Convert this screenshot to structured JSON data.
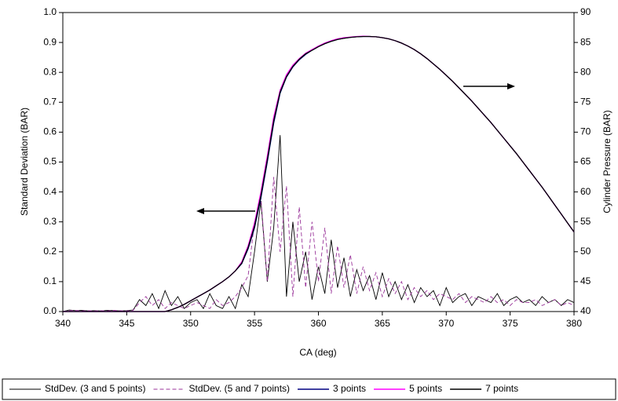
{
  "chart_data": {
    "type": "line",
    "xlabel": "CA (deg)",
    "ylabel": "Standard Deviation (BAR)",
    "y2label": "Cylinder Pressure (BAR)",
    "xlim": [
      340,
      380
    ],
    "xticks": [
      340,
      345,
      350,
      355,
      360,
      365,
      370,
      375,
      380
    ],
    "ylim": [
      0,
      1
    ],
    "yticks": [
      {
        "value": 0,
        "label": "0.0"
      },
      0.1,
      0.2,
      0.3,
      0.4,
      0.5,
      0.6,
      0.7,
      0.8,
      0.9,
      {
        "value": 1,
        "label": "1.0"
      }
    ],
    "y2lim": [
      40,
      90
    ],
    "y2ticks": [
      40,
      45,
      50,
      55,
      60,
      65,
      70,
      75,
      80,
      85,
      90
    ],
    "legend": "bottom",
    "x": [
      340,
      340.5,
      341,
      341.5,
      342,
      342.5,
      343,
      343.5,
      344,
      344.5,
      345,
      345.5,
      346,
      346.5,
      347,
      347.5,
      348,
      348.5,
      349,
      349.5,
      350,
      350.5,
      351,
      351.5,
      352,
      352.5,
      353,
      353.5,
      354,
      354.5,
      355,
      355.5,
      356,
      356.5,
      357,
      357.5,
      358,
      358.5,
      359,
      359.5,
      360,
      360.5,
      361,
      361.5,
      362,
      362.5,
      363,
      363.5,
      364,
      364.5,
      365,
      365.5,
      366,
      366.5,
      367,
      367.5,
      368,
      368.5,
      369,
      369.5,
      370,
      370.5,
      371,
      371.5,
      372,
      372.5,
      373,
      373.5,
      374,
      374.5,
      375,
      375.5,
      376,
      376.5,
      377,
      377.5,
      378,
      378.5,
      379,
      379.5,
      380
    ],
    "series": [
      {
        "name": "StdDev. (3 and 5 points)",
        "color": "#000000",
        "dash": false,
        "values": [
          0,
          0.005,
          0.003,
          0.004,
          0.002,
          0.003,
          0.002,
          0.004,
          0.003,
          0.002,
          0.003,
          0.005,
          0.04,
          0.02,
          0.06,
          0.01,
          0.07,
          0.02,
          0.05,
          0.01,
          0.03,
          0.04,
          0.01,
          0.06,
          0.02,
          0.01,
          0.05,
          0.01,
          0.09,
          0.05,
          0.2,
          0.37,
          0.1,
          0.28,
          0.59,
          0.05,
          0.3,
          0.1,
          0.2,
          0.04,
          0.15,
          0.06,
          0.24,
          0.08,
          0.18,
          0.05,
          0.14,
          0.07,
          0.12,
          0.04,
          0.13,
          0.05,
          0.1,
          0.04,
          0.09,
          0.03,
          0.08,
          0.05,
          0.07,
          0.02,
          0.08,
          0.03,
          0.05,
          0.06,
          0.02,
          0.05,
          0.04,
          0.03,
          0.06,
          0.02,
          0.04,
          0.05,
          0.03,
          0.04,
          0.02,
          0.05,
          0.03,
          0.04,
          0.02,
          0.04,
          0.03
        ]
      },
      {
        "name": "StdDev. (5 and 7 points)",
        "color": "#993399",
        "dash": true,
        "values": [
          0,
          0.003,
          0.004,
          0.002,
          0.003,
          0.002,
          0.003,
          0.002,
          0.004,
          0.003,
          0.002,
          0.004,
          0.03,
          0.05,
          0.02,
          0.04,
          0.01,
          0.03,
          0.02,
          0.01,
          0.02,
          0.03,
          0.02,
          0.01,
          0.04,
          0.02,
          0.03,
          0.05,
          0.08,
          0.12,
          0.3,
          0.38,
          0.1,
          0.45,
          0.2,
          0.42,
          0.05,
          0.35,
          0.08,
          0.3,
          0.1,
          0.28,
          0.06,
          0.22,
          0.08,
          0.19,
          0.06,
          0.15,
          0.07,
          0.13,
          0.05,
          0.11,
          0.06,
          0.1,
          0.04,
          0.08,
          0.05,
          0.07,
          0.04,
          0.06,
          0.05,
          0.04,
          0.06,
          0.03,
          0.05,
          0.04,
          0.03,
          0.05,
          0.03,
          0.04,
          0.02,
          0.04,
          0.03,
          0.03,
          0.04,
          0.02,
          0.03,
          0.04,
          0.02,
          0.03,
          0.02
        ]
      },
      {
        "name": "3 points",
        "color": "#000080",
        "dash": false,
        "axis": "y2",
        "values": [
          40,
          40,
          40,
          40,
          40,
          40,
          40,
          40,
          40,
          40,
          40,
          40,
          40,
          40,
          40,
          40,
          40,
          40.3,
          40.7,
          41.2,
          41.8,
          42.4,
          43,
          43.6,
          44.3,
          45,
          45.8,
          46.8,
          48,
          50.5,
          54,
          59,
          65,
          71.5,
          76.5,
          79.2,
          80.9,
          82.1,
          83,
          83.7,
          84.3,
          84.8,
          85.2,
          85.5,
          85.7,
          85.85,
          85.95,
          86,
          86,
          85.95,
          85.8,
          85.6,
          85.3,
          84.9,
          84.4,
          83.8,
          83.1,
          82.3,
          81.4,
          80.5,
          79.5,
          78.5,
          77.4,
          76.3,
          75.2,
          74,
          72.8,
          71.6,
          70.3,
          69,
          67.7,
          66.4,
          65,
          63.6,
          62.2,
          60.8,
          59.3,
          57.8,
          56.3,
          54.8,
          53.3
        ]
      },
      {
        "name": "5 points",
        "color": "#ff00ff",
        "dash": false,
        "axis": "y2",
        "values": [
          40,
          40,
          40,
          40,
          40,
          40,
          40,
          40,
          40,
          40,
          40,
          40,
          40,
          40,
          40,
          40,
          40,
          40.3,
          40.7,
          41.2,
          41.8,
          42.4,
          43,
          43.6,
          44.3,
          45,
          45.8,
          46.8,
          48.3,
          51,
          54.8,
          60,
          66,
          72.5,
          77,
          79.6,
          81.2,
          82.3,
          83.2,
          83.8,
          84.4,
          84.9,
          85.3,
          85.6,
          85.8,
          85.9,
          86,
          86.05,
          86,
          85.95,
          85.8,
          85.6,
          85.3,
          84.9,
          84.4,
          83.8,
          83.1,
          82.3,
          81.4,
          80.5,
          79.5,
          78.5,
          77.4,
          76.3,
          75.2,
          74,
          72.8,
          71.6,
          70.3,
          69,
          67.7,
          66.4,
          65,
          63.6,
          62.2,
          60.8,
          59.3,
          57.8,
          56.3,
          54.8,
          53.3
        ]
      },
      {
        "name": "7 points",
        "color": "#000000",
        "dash": false,
        "axis": "y2",
        "values": [
          40,
          40,
          40,
          40,
          40,
          40,
          40,
          40,
          40,
          40,
          40,
          40,
          40,
          40,
          40,
          40,
          40,
          40.3,
          40.7,
          41.2,
          41.8,
          42.4,
          43,
          43.6,
          44.3,
          45,
          45.8,
          46.8,
          48.1,
          50.7,
          54.3,
          59.4,
          65.4,
          71.9,
          76.7,
          79.3,
          81,
          82.2,
          83.1,
          83.7,
          84.3,
          84.8,
          85.2,
          85.5,
          85.7,
          85.85,
          85.95,
          86,
          86,
          85.95,
          85.8,
          85.6,
          85.3,
          84.9,
          84.4,
          83.8,
          83.1,
          82.3,
          81.4,
          80.5,
          79.5,
          78.5,
          77.4,
          76.3,
          75.2,
          74,
          72.8,
          71.6,
          70.3,
          69,
          67.7,
          66.4,
          65,
          63.6,
          62.2,
          60.8,
          59.3,
          57.8,
          56.3,
          54.8,
          53.3
        ]
      }
    ]
  }
}
